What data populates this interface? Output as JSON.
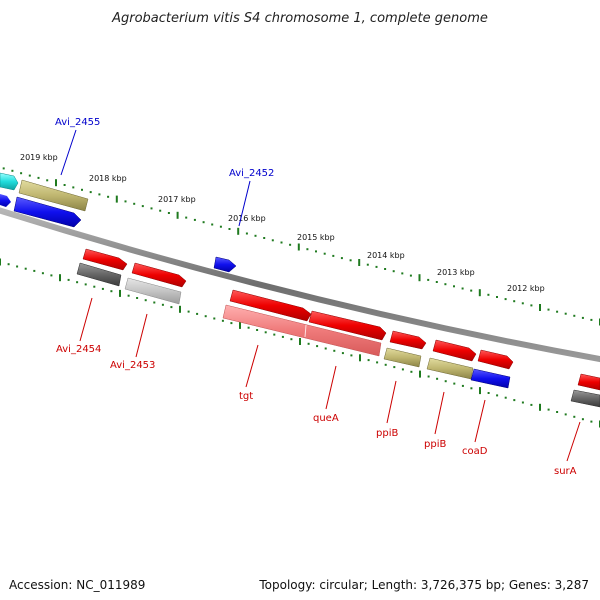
{
  "title": "Agrobacterium vitis S4 chromosome 1, complete genome",
  "footer": {
    "accession": "Accession: NC_011989",
    "topology": "Topology: circular; Length: 3,726,375 bp; Genes: 3,287"
  },
  "colors": {
    "backbone": "#8a8a8a",
    "tick_dots": "#1f7a1f",
    "label_above": "#0000cc",
    "label_below": "#cc0000"
  },
  "ruler_labels": [
    "2019 kbp",
    "2018 kbp",
    "2017 kbp",
    "2016 kbp",
    "2015 kbp",
    "2014 kbp",
    "2013 kbp",
    "2012 kbp"
  ],
  "genes": [
    {
      "id": "avi2455",
      "label": "Avi_2455",
      "color": "#2a2aee"
    },
    {
      "id": "avi2452",
      "label": "Avi_2452",
      "color": "#2a2aee"
    },
    {
      "id": "avi2454",
      "label": "Avi_2454",
      "color": "#ee1111"
    },
    {
      "id": "avi2453",
      "label": "Avi_2453",
      "color": "#ee1111"
    },
    {
      "id": "tgt",
      "label": "tgt",
      "color": "#ee1111"
    },
    {
      "id": "queA",
      "label": "queA",
      "color": "#ee1111"
    },
    {
      "id": "ppiB1",
      "label": "ppiB",
      "color": "#ee1111"
    },
    {
      "id": "ppiB2",
      "label": "ppiB",
      "color": "#ee1111"
    },
    {
      "id": "coaD",
      "label": "coaD",
      "color": "#ee1111"
    },
    {
      "id": "surA",
      "label": "surA",
      "color": "#ee1111"
    }
  ]
}
